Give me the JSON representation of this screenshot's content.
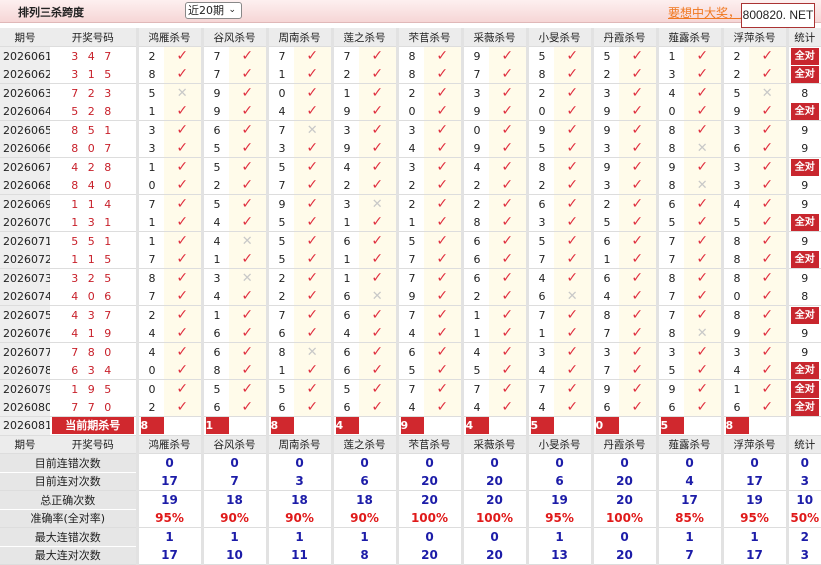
{
  "header": {
    "title": "排列三杀跨度",
    "period_select": "近20期",
    "promo_link": "要想中大奖，天",
    "badge": "800820. NET"
  },
  "columns": {
    "period": "期号",
    "draw": "开奖号码",
    "kills": [
      "鸿雁杀号",
      "谷风杀号",
      "周南杀号",
      "莲之杀号",
      "芣苢杀号",
      "采薇杀号",
      "小旻杀号",
      "丹霞杀号",
      "薤露杀号",
      "浮萍杀号"
    ],
    "stat": "统计"
  },
  "all_correct_label": "全对",
  "rows": [
    {
      "period": "2026061",
      "draw": "3 4 7",
      "kills": [
        2,
        7,
        7,
        7,
        8,
        9,
        5,
        5,
        1,
        2
      ],
      "miss": [],
      "stat": "全对"
    },
    {
      "period": "2026062",
      "draw": "3 1 5",
      "kills": [
        8,
        7,
        1,
        2,
        8,
        7,
        8,
        2,
        3,
        2
      ],
      "miss": [],
      "stat": "全对"
    },
    {
      "period": "2026063",
      "draw": "7 2 3",
      "kills": [
        5,
        9,
        0,
        1,
        2,
        3,
        2,
        3,
        4,
        5
      ],
      "miss": [
        0,
        9
      ],
      "stat": "8"
    },
    {
      "period": "2026064",
      "draw": "5 2 8",
      "kills": [
        1,
        9,
        4,
        9,
        0,
        9,
        0,
        9,
        0,
        9
      ],
      "miss": [],
      "stat": "全对"
    },
    {
      "period": "2026065",
      "draw": "8 5 1",
      "kills": [
        3,
        6,
        7,
        3,
        3,
        0,
        9,
        9,
        8,
        3
      ],
      "miss": [
        2
      ],
      "stat": "9"
    },
    {
      "period": "2026066",
      "draw": "8 0 7",
      "kills": [
        3,
        5,
        3,
        9,
        4,
        9,
        5,
        3,
        8,
        6
      ],
      "miss": [
        8
      ],
      "stat": "9"
    },
    {
      "period": "2026067",
      "draw": "4 2 8",
      "kills": [
        1,
        5,
        5,
        4,
        3,
        4,
        8,
        9,
        9,
        3
      ],
      "miss": [],
      "stat": "全对"
    },
    {
      "period": "2026068",
      "draw": "8 4 0",
      "kills": [
        0,
        2,
        7,
        2,
        2,
        2,
        2,
        3,
        8,
        3
      ],
      "miss": [
        8
      ],
      "stat": "9"
    },
    {
      "period": "2026069",
      "draw": "1 1 4",
      "kills": [
        7,
        5,
        9,
        3,
        2,
        2,
        6,
        2,
        6,
        4
      ],
      "miss": [
        3
      ],
      "stat": "9"
    },
    {
      "period": "2026070",
      "draw": "1 3 1",
      "kills": [
        1,
        4,
        5,
        1,
        1,
        8,
        3,
        5,
        5,
        5
      ],
      "miss": [],
      "stat": "全对"
    },
    {
      "period": "2026071",
      "draw": "5 5 1",
      "kills": [
        1,
        4,
        5,
        6,
        5,
        6,
        5,
        6,
        7,
        8
      ],
      "miss": [
        1
      ],
      "stat": "9"
    },
    {
      "period": "2026072",
      "draw": "1 1 5",
      "kills": [
        7,
        1,
        5,
        1,
        7,
        6,
        7,
        1,
        7,
        8
      ],
      "miss": [],
      "stat": "全对"
    },
    {
      "period": "2026073",
      "draw": "3 2 5",
      "kills": [
        8,
        3,
        2,
        1,
        7,
        6,
        4,
        6,
        8,
        8
      ],
      "miss": [
        1
      ],
      "stat": "9"
    },
    {
      "period": "2026074",
      "draw": "4 0 6",
      "kills": [
        7,
        4,
        2,
        6,
        9,
        2,
        6,
        4,
        7,
        0
      ],
      "miss": [
        3,
        6
      ],
      "stat": "8"
    },
    {
      "period": "2026075",
      "draw": "4 3 7",
      "kills": [
        2,
        1,
        7,
        6,
        7,
        1,
        7,
        8,
        7,
        8
      ],
      "miss": [],
      "stat": "全对"
    },
    {
      "period": "2026076",
      "draw": "4 1 9",
      "kills": [
        4,
        6,
        6,
        4,
        4,
        1,
        1,
        7,
        8,
        9
      ],
      "miss": [
        8
      ],
      "stat": "9"
    },
    {
      "period": "2026077",
      "draw": "7 8 0",
      "kills": [
        4,
        6,
        8,
        6,
        6,
        4,
        3,
        3,
        3,
        3
      ],
      "miss": [
        2
      ],
      "stat": "9"
    },
    {
      "period": "2026078",
      "draw": "6 3 4",
      "kills": [
        0,
        8,
        1,
        6,
        5,
        5,
        4,
        7,
        5,
        4
      ],
      "miss": [],
      "stat": "全对"
    },
    {
      "period": "2026079",
      "draw": "1 9 5",
      "kills": [
        0,
        5,
        5,
        5,
        7,
        7,
        7,
        9,
        9,
        1
      ],
      "miss": [],
      "stat": "全对"
    },
    {
      "period": "2026080",
      "draw": "7 7 0",
      "kills": [
        2,
        6,
        6,
        6,
        4,
        4,
        4,
        6,
        6,
        6
      ],
      "miss": [],
      "stat": "全对"
    }
  ],
  "current": {
    "period": "2026081",
    "label": "当前期杀号",
    "kills": [
      8,
      1,
      8,
      4,
      9,
      4,
      5,
      0,
      5,
      8
    ]
  },
  "stats": [
    {
      "label": "目前连错次数",
      "values": [
        "0",
        "0",
        "0",
        "0",
        "0",
        "0",
        "0",
        "0",
        "0",
        "0",
        "0"
      ],
      "kind": "count"
    },
    {
      "label": "目前连对次数",
      "values": [
        "17",
        "7",
        "3",
        "6",
        "20",
        "20",
        "6",
        "20",
        "4",
        "17",
        "3"
      ],
      "kind": "count"
    },
    {
      "label": "总正确次数",
      "values": [
        "19",
        "18",
        "18",
        "18",
        "20",
        "20",
        "19",
        "20",
        "17",
        "19",
        "10"
      ],
      "kind": "count"
    },
    {
      "label": "准确率(全对率)",
      "values": [
        "95%",
        "90%",
        "90%",
        "90%",
        "100%",
        "100%",
        "95%",
        "100%",
        "85%",
        "95%",
        "50%"
      ],
      "kind": "rate"
    },
    {
      "label": "最大连错次数",
      "values": [
        "1",
        "1",
        "1",
        "1",
        "0",
        "0",
        "1",
        "0",
        "1",
        "1",
        "2"
      ],
      "kind": "count"
    },
    {
      "label": "最大连对次数",
      "values": [
        "17",
        "10",
        "11",
        "8",
        "20",
        "20",
        "13",
        "20",
        "7",
        "17",
        "3"
      ],
      "kind": "count"
    }
  ],
  "colors": {
    "accent": "#c8262e",
    "check": "#e03040",
    "stat_value": "#1c1ca8",
    "rate": "#e01a1a"
  },
  "icons": {
    "correct": "check-icon",
    "wrong": "cross-icon"
  }
}
